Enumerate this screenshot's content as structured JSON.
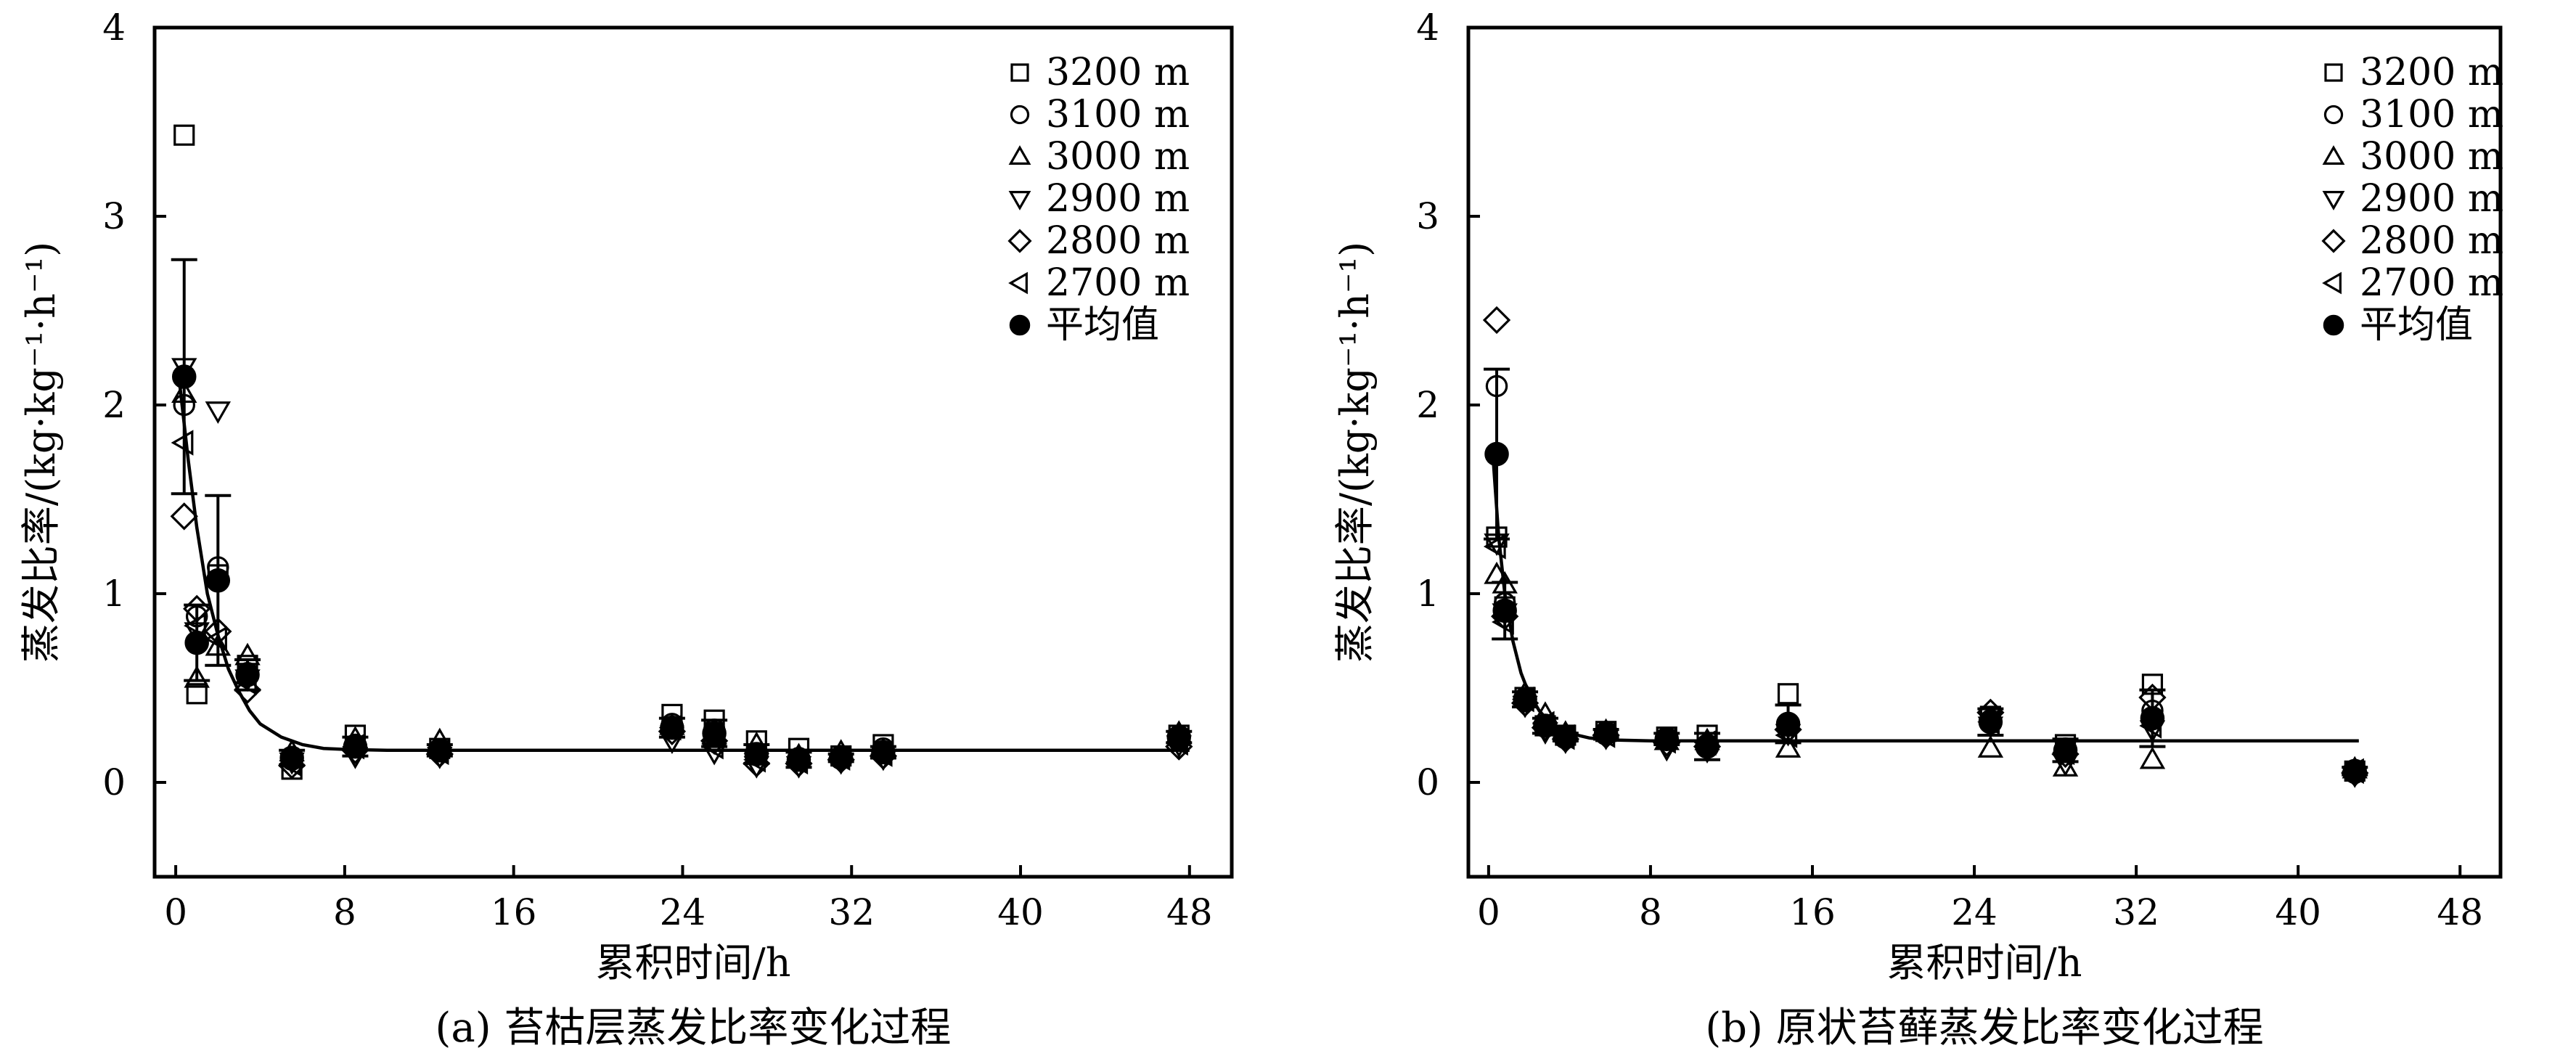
{
  "chart_data": [
    {
      "type": "scatter",
      "caption": "(a) 苔枯层蒸发比率变化过程",
      "xlabel": "累积时间/h",
      "ylabel": "蒸发比率/(kg·kg⁻¹·h⁻¹)",
      "xlim": [
        -1,
        50
      ],
      "ylim": [
        -0.5,
        4
      ],
      "xticks": [
        "0",
        "8",
        "16",
        "24",
        "32",
        "40",
        "48"
      ],
      "yticks": [
        "0",
        "1",
        "2",
        "3",
        "4"
      ],
      "legend_position": "top-right",
      "series": [
        {
          "name": "3200 m",
          "marker": "square",
          "points": [
            [
              0.4,
              3.43
            ],
            [
              1,
              0.47
            ],
            [
              2,
              1.1
            ],
            [
              3.4,
              0.62
            ],
            [
              5.5,
              0.07
            ],
            [
              8.5,
              0.25
            ],
            [
              12.5,
              0.18
            ],
            [
              23.5,
              0.36
            ],
            [
              25.5,
              0.33
            ],
            [
              27.5,
              0.22
            ],
            [
              29.5,
              0.18
            ],
            [
              31.5,
              0.14
            ],
            [
              33.5,
              0.2
            ],
            [
              47.5,
              0.25
            ]
          ]
        },
        {
          "name": "3100 m",
          "marker": "circle",
          "points": [
            [
              0.4,
              2.0
            ],
            [
              1,
              0.88
            ],
            [
              2,
              1.14
            ],
            [
              3.4,
              0.58
            ],
            [
              5.5,
              0.12
            ],
            [
              8.5,
              0.2
            ],
            [
              12.5,
              0.17
            ],
            [
              23.5,
              0.31
            ],
            [
              25.5,
              0.28
            ],
            [
              27.5,
              0.15
            ],
            [
              29.5,
              0.13
            ],
            [
              31.5,
              0.14
            ],
            [
              33.5,
              0.18
            ],
            [
              47.5,
              0.22
            ]
          ]
        },
        {
          "name": "3000 m",
          "marker": "triangle-up",
          "points": [
            [
              0.4,
              2.06
            ],
            [
              1,
              0.55
            ],
            [
              2,
              0.72
            ],
            [
              3.4,
              0.67
            ],
            [
              5.5,
              0.16
            ],
            [
              8.5,
              0.23
            ],
            [
              12.5,
              0.22
            ],
            [
              23.5,
              0.3
            ],
            [
              25.5,
              0.25
            ],
            [
              27.5,
              0.2
            ],
            [
              29.5,
              0.14
            ],
            [
              31.5,
              0.16
            ],
            [
              33.5,
              0.17
            ],
            [
              47.5,
              0.26
            ]
          ]
        },
        {
          "name": "2900 m",
          "marker": "triangle-down",
          "points": [
            [
              0.4,
              2.2
            ],
            [
              1,
              0.8
            ],
            [
              2,
              1.97
            ],
            [
              3.4,
              0.55
            ],
            [
              5.5,
              0.11
            ],
            [
              8.5,
              0.14
            ],
            [
              12.5,
              0.14
            ],
            [
              23.5,
              0.22
            ],
            [
              25.5,
              0.16
            ],
            [
              27.5,
              0.09
            ],
            [
              29.5,
              0.09
            ],
            [
              31.5,
              0.11
            ],
            [
              33.5,
              0.13
            ],
            [
              47.5,
              0.2
            ]
          ]
        },
        {
          "name": "2800 m",
          "marker": "diamond",
          "points": [
            [
              0.4,
              1.41
            ],
            [
              1,
              0.92
            ],
            [
              2,
              0.8
            ],
            [
              3.4,
              0.49
            ],
            [
              5.5,
              0.09
            ],
            [
              8.5,
              0.17
            ],
            [
              12.5,
              0.15
            ],
            [
              23.5,
              0.27
            ],
            [
              25.5,
              0.22
            ],
            [
              27.5,
              0.1
            ],
            [
              29.5,
              0.1
            ],
            [
              31.5,
              0.12
            ],
            [
              33.5,
              0.14
            ],
            [
              47.5,
              0.19
            ]
          ]
        },
        {
          "name": "2700 m",
          "marker": "triangle-left",
          "points": [
            [
              0.4,
              1.8
            ],
            [
              1,
              0.83
            ],
            [
              2,
              0.76
            ],
            [
              3.4,
              0.53
            ],
            [
              5.5,
              0.1
            ],
            [
              8.5,
              0.19
            ],
            [
              12.5,
              0.16
            ],
            [
              23.5,
              0.29
            ],
            [
              25.5,
              0.19
            ],
            [
              27.5,
              0.12
            ],
            [
              29.5,
              0.11
            ],
            [
              31.5,
              0.13
            ],
            [
              33.5,
              0.15
            ],
            [
              47.5,
              0.21
            ]
          ]
        },
        {
          "name": "平均值",
          "marker": "filled-circle",
          "points": [
            [
              0.4,
              2.15
            ],
            [
              1,
              0.74
            ],
            [
              2,
              1.07
            ],
            [
              3.4,
              0.57
            ],
            [
              5.5,
              0.13
            ],
            [
              8.5,
              0.19
            ],
            [
              12.5,
              0.17
            ],
            [
              23.5,
              0.29
            ],
            [
              25.5,
              0.26
            ],
            [
              27.5,
              0.15
            ],
            [
              29.5,
              0.12
            ],
            [
              31.5,
              0.13
            ],
            [
              33.5,
              0.16
            ],
            [
              47.5,
              0.24
            ]
          ],
          "error": [
            0.62,
            0.2,
            0.45,
            0.08,
            0.04,
            0.05,
            0.03,
            0.05,
            0.07,
            0.05,
            0.04,
            0.02,
            0.03,
            0.03
          ]
        }
      ],
      "fit_curve": [
        [
          0.2,
          2.1
        ],
        [
          0.6,
          1.7
        ],
        [
          1,
          1.35
        ],
        [
          1.5,
          1.0
        ],
        [
          2,
          0.78
        ],
        [
          2.5,
          0.6
        ],
        [
          3,
          0.48
        ],
        [
          3.5,
          0.38
        ],
        [
          4,
          0.31
        ],
        [
          5,
          0.24
        ],
        [
          6,
          0.2
        ],
        [
          7,
          0.18
        ],
        [
          8,
          0.175
        ],
        [
          10,
          0.17
        ],
        [
          48,
          0.17
        ]
      ]
    },
    {
      "type": "scatter",
      "caption": "(b) 原状苔藓蒸发比率变化过程",
      "xlabel": "累积时间/h",
      "ylabel": "蒸发比率/(kg·kg⁻¹·h⁻¹)",
      "xlim": [
        -1,
        50
      ],
      "ylim": [
        -0.5,
        4
      ],
      "xticks": [
        "0",
        "8",
        "16",
        "24",
        "32",
        "40",
        "48"
      ],
      "yticks": [
        "0",
        "1",
        "2",
        "3",
        "4"
      ],
      "legend_position": "top-right",
      "series": [
        {
          "name": "3200 m",
          "marker": "square",
          "points": [
            [
              0.4,
              1.3
            ],
            [
              0.8,
              0.93
            ],
            [
              1.8,
              0.45
            ],
            [
              2.8,
              0.3
            ],
            [
              3.8,
              0.25
            ],
            [
              5.8,
              0.27
            ],
            [
              8.8,
              0.24
            ],
            [
              10.8,
              0.25
            ],
            [
              14.8,
              0.47
            ],
            [
              24.8,
              0.35
            ],
            [
              28.5,
              0.2
            ],
            [
              32.8,
              0.52
            ],
            [
              42.8,
              0.06
            ]
          ]
        },
        {
          "name": "3100 m",
          "marker": "circle",
          "points": [
            [
              0.4,
              2.1
            ],
            [
              0.8,
              0.95
            ],
            [
              1.8,
              0.43
            ],
            [
              2.8,
              0.3
            ],
            [
              3.8,
              0.24
            ],
            [
              5.8,
              0.26
            ],
            [
              8.8,
              0.23
            ],
            [
              10.8,
              0.2
            ],
            [
              14.8,
              0.3
            ],
            [
              24.8,
              0.33
            ],
            [
              28.5,
              0.18
            ],
            [
              32.8,
              0.38
            ],
            [
              42.8,
              0.05
            ]
          ]
        },
        {
          "name": "3000 m",
          "marker": "triangle-up",
          "points": [
            [
              0.4,
              1.1
            ],
            [
              0.8,
              1.05
            ],
            [
              1.8,
              0.47
            ],
            [
              2.8,
              0.36
            ],
            [
              3.8,
              0.26
            ],
            [
              5.8,
              0.27
            ],
            [
              8.8,
              0.22
            ],
            [
              10.8,
              0.22
            ],
            [
              14.8,
              0.18
            ],
            [
              24.8,
              0.18
            ],
            [
              28.5,
              0.08
            ],
            [
              32.8,
              0.12
            ],
            [
              42.8,
              0.07
            ]
          ]
        },
        {
          "name": "2900 m",
          "marker": "triangle-down",
          "points": [
            [
              0.4,
              1.27
            ],
            [
              0.8,
              0.9
            ],
            [
              1.8,
              0.41
            ],
            [
              2.8,
              0.27
            ],
            [
              3.8,
              0.22
            ],
            [
              5.8,
              0.24
            ],
            [
              8.8,
              0.18
            ],
            [
              10.8,
              0.17
            ],
            [
              14.8,
              0.26
            ],
            [
              24.8,
              0.3
            ],
            [
              28.5,
              0.1
            ],
            [
              32.8,
              0.28
            ],
            [
              42.8,
              0.04
            ]
          ]
        },
        {
          "name": "2800 m",
          "marker": "diamond",
          "points": [
            [
              0.4,
              2.45
            ],
            [
              0.8,
              0.88
            ],
            [
              1.8,
              0.42
            ],
            [
              2.8,
              0.29
            ],
            [
              3.8,
              0.23
            ],
            [
              5.8,
              0.25
            ],
            [
              8.8,
              0.21
            ],
            [
              10.8,
              0.19
            ],
            [
              14.8,
              0.28
            ],
            [
              24.8,
              0.37
            ],
            [
              28.5,
              0.15
            ],
            [
              32.8,
              0.45
            ],
            [
              42.8,
              0.05
            ]
          ]
        },
        {
          "name": "2700 m",
          "marker": "triangle-left",
          "points": [
            [
              0.4,
              1.25
            ],
            [
              0.8,
              0.85
            ],
            [
              1.8,
              0.44
            ],
            [
              2.8,
              0.31
            ],
            [
              3.8,
              0.24
            ],
            [
              5.8,
              0.25
            ],
            [
              8.8,
              0.22
            ],
            [
              10.8,
              0.21
            ],
            [
              14.8,
              0.25
            ],
            [
              24.8,
              0.32
            ],
            [
              28.5,
              0.16
            ],
            [
              32.8,
              0.3
            ],
            [
              42.8,
              0.06
            ]
          ]
        },
        {
          "name": "平均值",
          "marker": "filled-circle",
          "points": [
            [
              0.4,
              1.74
            ],
            [
              0.8,
              0.91
            ],
            [
              1.8,
              0.44
            ],
            [
              2.8,
              0.3
            ],
            [
              3.8,
              0.24
            ],
            [
              5.8,
              0.26
            ],
            [
              8.8,
              0.23
            ],
            [
              10.8,
              0.19
            ],
            [
              14.8,
              0.31
            ],
            [
              24.8,
              0.32
            ],
            [
              28.5,
              0.17
            ],
            [
              32.8,
              0.34
            ],
            [
              42.8,
              0.06
            ]
          ],
          "error": [
            0.45,
            0.15,
            0.04,
            0.04,
            0.02,
            0.02,
            0.03,
            0.07,
            0.1,
            0.07,
            0.06,
            0.15,
            0.02
          ]
        }
      ],
      "fit_curve": [
        [
          0.2,
          1.75
        ],
        [
          0.5,
          1.3
        ],
        [
          0.8,
          1.0
        ],
        [
          1.2,
          0.75
        ],
        [
          1.6,
          0.58
        ],
        [
          2,
          0.47
        ],
        [
          2.5,
          0.38
        ],
        [
          3,
          0.32
        ],
        [
          3.5,
          0.28
        ],
        [
          4,
          0.26
        ],
        [
          5,
          0.235
        ],
        [
          6,
          0.225
        ],
        [
          8,
          0.22
        ],
        [
          43,
          0.22
        ]
      ]
    }
  ]
}
